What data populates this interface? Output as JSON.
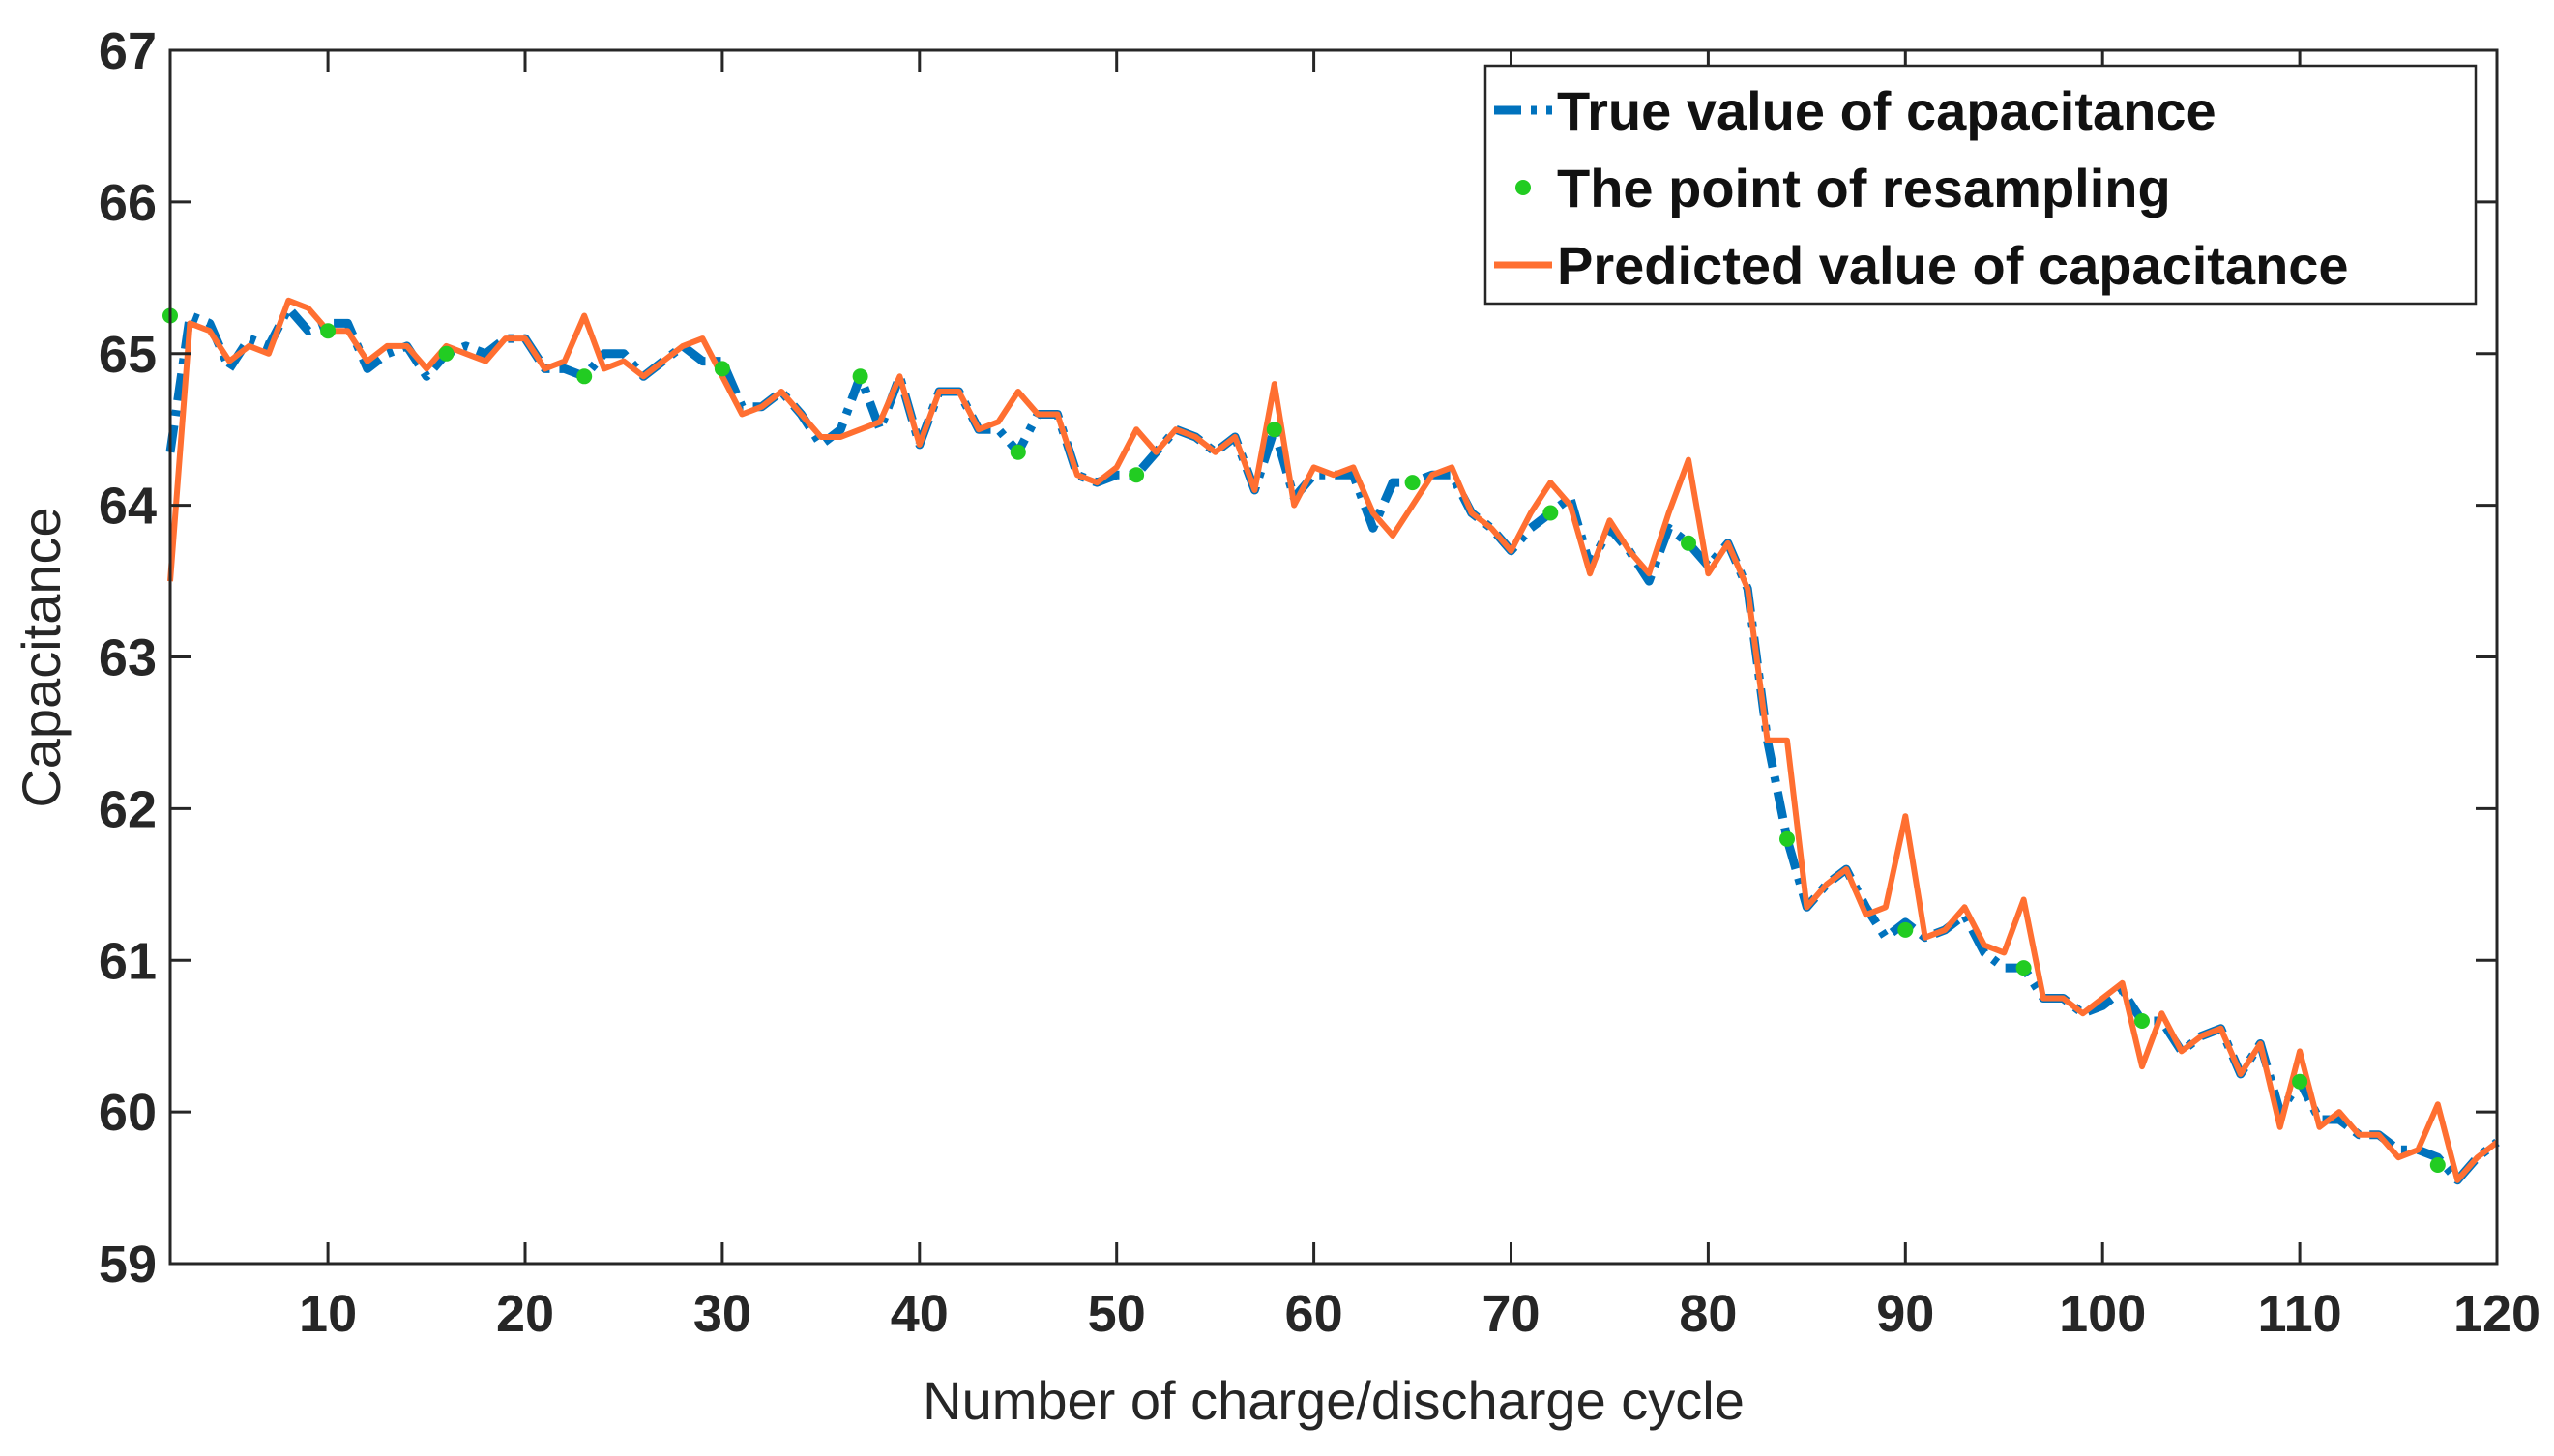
{
  "chart_data": {
    "type": "line",
    "title": "",
    "xlabel": "Number of charge/discharge cycle",
    "ylabel": "Capacitance",
    "xlim": [
      2,
      120
    ],
    "ylim": [
      59,
      67
    ],
    "xticks": [
      10,
      20,
      30,
      40,
      50,
      60,
      70,
      80,
      90,
      100,
      110,
      120
    ],
    "yticks": [
      59,
      60,
      61,
      62,
      63,
      64,
      65,
      66,
      67
    ],
    "grid": false,
    "legend_position": "top-right",
    "x": [
      2,
      3,
      4,
      5,
      6,
      7,
      8,
      9,
      10,
      11,
      12,
      13,
      14,
      15,
      16,
      17,
      18,
      19,
      20,
      21,
      22,
      23,
      24,
      25,
      26,
      27,
      28,
      29,
      30,
      31,
      32,
      33,
      34,
      35,
      36,
      37,
      38,
      39,
      40,
      41,
      42,
      43,
      44,
      45,
      46,
      47,
      48,
      49,
      50,
      51,
      52,
      53,
      54,
      55,
      56,
      57,
      58,
      59,
      60,
      61,
      62,
      63,
      64,
      65,
      66,
      67,
      68,
      69,
      70,
      71,
      72,
      73,
      74,
      75,
      76,
      77,
      78,
      79,
      80,
      81,
      82,
      83,
      84,
      85,
      86,
      87,
      88,
      89,
      90,
      91,
      92,
      93,
      94,
      95,
      96,
      97,
      98,
      99,
      100,
      101,
      102,
      103,
      104,
      105,
      106,
      107,
      108,
      109,
      110,
      111,
      112,
      113,
      114,
      115,
      116,
      117,
      118,
      119,
      120
    ],
    "series": [
      {
        "name": "True value of capacitance",
        "color": "#0072bd",
        "style": "dash-dot",
        "values": [
          64.35,
          65.25,
          65.2,
          64.9,
          65.1,
          65.05,
          65.3,
          65.15,
          65.2,
          65.2,
          64.9,
          65.0,
          65.05,
          64.85,
          65.0,
          65.05,
          65.0,
          65.1,
          65.1,
          64.9,
          64.9,
          64.85,
          65.0,
          65.0,
          64.85,
          64.95,
          65.05,
          64.95,
          64.95,
          64.65,
          64.65,
          64.75,
          64.6,
          64.4,
          64.5,
          64.85,
          64.5,
          64.85,
          64.4,
          64.75,
          64.75,
          64.5,
          64.5,
          64.35,
          64.6,
          64.6,
          64.2,
          64.15,
          64.2,
          64.2,
          64.35,
          64.5,
          64.45,
          64.35,
          64.45,
          64.1,
          64.5,
          64.05,
          64.2,
          64.2,
          64.2,
          63.85,
          64.15,
          64.15,
          64.2,
          64.2,
          63.95,
          63.85,
          63.7,
          63.85,
          63.95,
          64.05,
          63.6,
          63.85,
          63.7,
          63.5,
          63.85,
          63.75,
          63.6,
          63.75,
          63.45,
          62.45,
          61.8,
          61.35,
          61.5,
          61.6,
          61.35,
          61.15,
          61.25,
          61.15,
          61.2,
          61.3,
          61.05,
          60.95,
          60.95,
          60.75,
          60.75,
          60.65,
          60.7,
          60.8,
          60.6,
          60.6,
          60.4,
          60.5,
          60.55,
          60.25,
          60.45,
          60.0,
          60.2,
          59.95,
          59.95,
          59.85,
          59.85,
          59.75,
          59.75,
          59.7,
          59.55,
          59.7,
          59.8
        ]
      },
      {
        "name": "Predicted value of capacitance",
        "color": "#ff6f31",
        "style": "solid",
        "values": [
          63.5,
          65.2,
          65.15,
          64.95,
          65.05,
          65.0,
          65.35,
          65.3,
          65.15,
          65.15,
          64.95,
          65.05,
          65.05,
          64.9,
          65.05,
          65.0,
          64.95,
          65.1,
          65.1,
          64.9,
          64.95,
          65.25,
          64.9,
          64.95,
          64.85,
          64.95,
          65.05,
          65.1,
          64.85,
          64.6,
          64.65,
          64.75,
          64.6,
          64.45,
          64.45,
          64.5,
          64.55,
          64.85,
          64.4,
          64.75,
          64.75,
          64.5,
          64.55,
          64.75,
          64.6,
          64.6,
          64.2,
          64.15,
          64.25,
          64.5,
          64.35,
          64.5,
          64.45,
          64.35,
          64.45,
          64.1,
          64.8,
          64.0,
          64.25,
          64.2,
          64.25,
          63.95,
          63.8,
          64.0,
          64.2,
          64.25,
          63.95,
          63.85,
          63.7,
          63.95,
          64.15,
          64.0,
          63.55,
          63.9,
          63.7,
          63.55,
          63.95,
          64.3,
          63.55,
          63.75,
          63.45,
          62.45,
          62.45,
          61.35,
          61.5,
          61.6,
          61.3,
          61.35,
          61.95,
          61.15,
          61.2,
          61.35,
          61.1,
          61.05,
          61.4,
          60.75,
          60.75,
          60.65,
          60.75,
          60.85,
          60.3,
          60.65,
          60.4,
          60.5,
          60.55,
          60.25,
          60.45,
          59.9,
          60.4,
          59.9,
          60.0,
          59.85,
          59.85,
          59.7,
          59.75,
          60.05,
          59.55,
          59.7,
          59.8
        ]
      }
    ],
    "resample_points": {
      "name": "The point of resampling",
      "color": "#22cc22",
      "x": [
        2,
        10,
        16,
        23,
        30,
        37,
        45,
        51,
        58,
        65,
        72,
        79,
        84,
        90,
        96,
        102,
        110,
        117
      ],
      "y": [
        65.25,
        65.15,
        65.0,
        64.85,
        64.9,
        64.85,
        64.35,
        64.2,
        64.5,
        64.15,
        63.95,
        63.75,
        61.8,
        61.2,
        60.95,
        60.6,
        60.2,
        59.65
      ]
    }
  }
}
